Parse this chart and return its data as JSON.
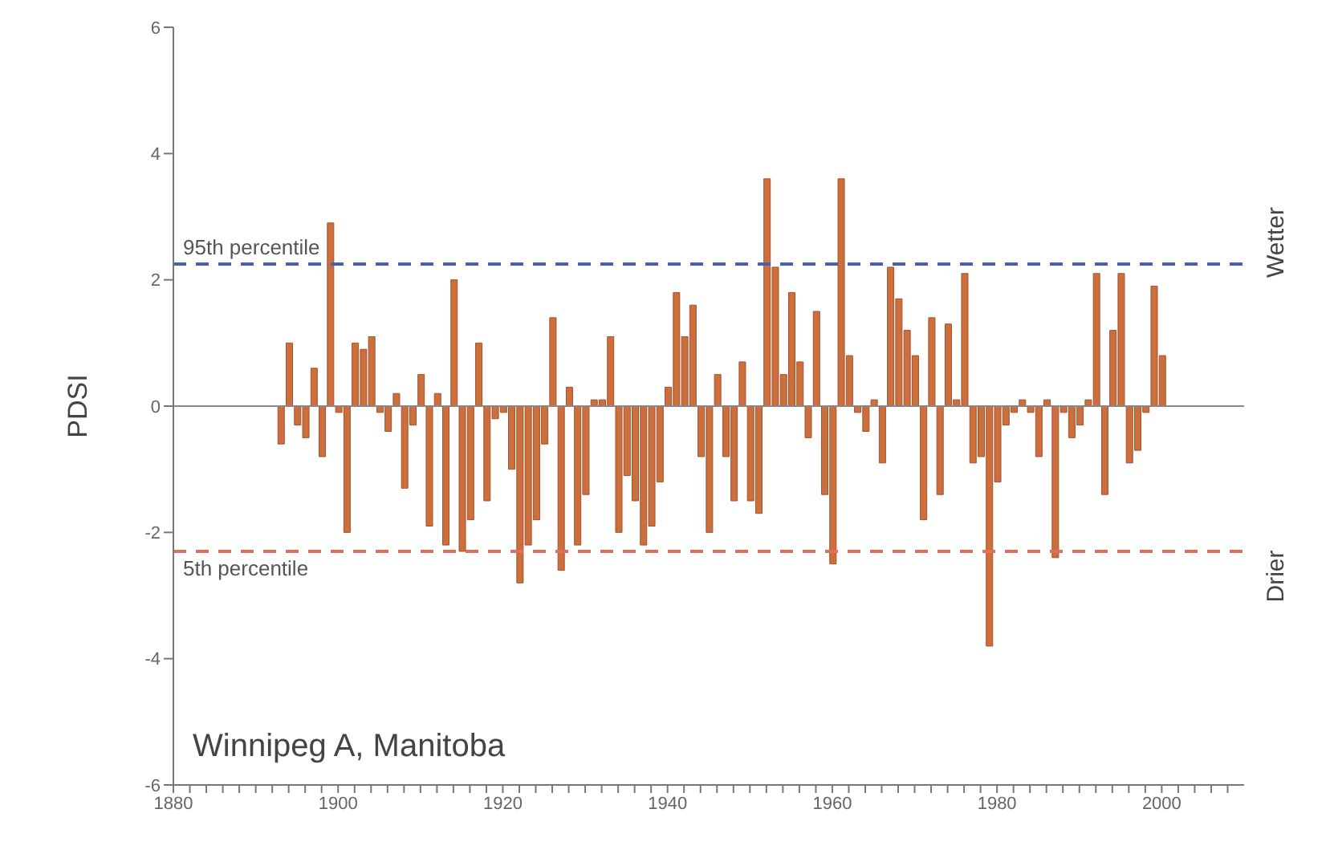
{
  "chart_data": {
    "type": "bar",
    "ylabel": "PDSI",
    "x": [
      1893,
      1894,
      1895,
      1896,
      1897,
      1898,
      1899,
      1900,
      1901,
      1902,
      1903,
      1904,
      1905,
      1906,
      1907,
      1908,
      1909,
      1910,
      1911,
      1912,
      1913,
      1914,
      1915,
      1916,
      1917,
      1918,
      1919,
      1920,
      1921,
      1922,
      1923,
      1924,
      1925,
      1926,
      1927,
      1928,
      1929,
      1930,
      1931,
      1932,
      1933,
      1934,
      1935,
      1936,
      1937,
      1938,
      1939,
      1940,
      1941,
      1942,
      1943,
      1944,
      1945,
      1946,
      1947,
      1948,
      1949,
      1950,
      1951,
      1952,
      1953,
      1954,
      1955,
      1956,
      1957,
      1958,
      1959,
      1960,
      1961,
      1962,
      1963,
      1964,
      1965,
      1966,
      1967,
      1968,
      1969,
      1970,
      1971,
      1972,
      1973,
      1974,
      1975,
      1976,
      1977,
      1978,
      1979,
      1980,
      1981,
      1982,
      1983,
      1984,
      1985,
      1986,
      1987,
      1988,
      1989,
      1990,
      1991,
      1992,
      1993,
      1994,
      1995,
      1996,
      1997,
      1998,
      1999,
      2000
    ],
    "values": [
      -0.6,
      1.0,
      -0.3,
      -0.5,
      0.6,
      -0.8,
      2.9,
      -0.1,
      -2.0,
      1.0,
      0.9,
      1.1,
      -0.1,
      -0.4,
      0.2,
      -1.3,
      -0.3,
      0.5,
      -1.9,
      0.2,
      -2.2,
      2.0,
      -2.3,
      -1.8,
      1.0,
      -1.5,
      -0.2,
      -0.1,
      -1.0,
      -2.8,
      -2.2,
      -1.8,
      -0.6,
      1.4,
      -2.6,
      0.3,
      -2.2,
      -1.4,
      0.1,
      0.1,
      1.1,
      -2.0,
      -1.1,
      -1.5,
      -2.2,
      -1.9,
      -1.2,
      0.3,
      1.8,
      1.1,
      1.6,
      -0.8,
      -2.0,
      0.5,
      -0.8,
      -1.5,
      0.7,
      -1.5,
      -1.7,
      3.6,
      2.2,
      0.5,
      1.8,
      0.7,
      -0.5,
      1.5,
      -1.4,
      -2.5,
      3.6,
      0.8,
      -0.1,
      -0.4,
      0.1,
      -0.9,
      2.2,
      1.7,
      1.2,
      0.8,
      -1.8,
      1.4,
      -1.4,
      1.3,
      0.1,
      2.1,
      -0.9,
      -0.8,
      -3.8,
      -1.2,
      -0.3,
      -0.1,
      0.1,
      -0.1,
      -0.8,
      0.1,
      -2.4,
      -0.1,
      -0.5,
      -0.3,
      0.1,
      2.1,
      -1.4,
      1.2,
      2.1,
      -0.9,
      -0.7,
      -0.1,
      1.9,
      0.8
    ],
    "color": "#cd6f3c",
    "xlim": [
      1880,
      2010
    ],
    "xticks": [
      1880,
      {
        "value": 1882,
        "label": null
      },
      {
        "value": 1884,
        "label": null
      },
      {
        "value": 1886,
        "label": null
      },
      {
        "value": 1888,
        "label": null
      },
      {
        "value": 1890,
        "label": null
      },
      {
        "value": 1892,
        "label": null
      },
      {
        "value": 1894,
        "label": null
      },
      {
        "value": 1896,
        "label": null
      },
      {
        "value": 1898,
        "label": null
      },
      1900,
      {
        "value": 1902,
        "label": null
      },
      {
        "value": 1904,
        "label": null
      },
      {
        "value": 1906,
        "label": null
      },
      {
        "value": 1908,
        "label": null
      },
      {
        "value": 1910,
        "label": null
      },
      {
        "value": 1912,
        "label": null
      },
      {
        "value": 1914,
        "label": null
      },
      {
        "value": 1916,
        "label": null
      },
      {
        "value": 1918,
        "label": null
      },
      1920,
      {
        "value": 1922,
        "label": null
      },
      {
        "value": 1924,
        "label": null
      },
      {
        "value": 1926,
        "label": null
      },
      {
        "value": 1928,
        "label": null
      },
      {
        "value": 1930,
        "label": null
      },
      {
        "value": 1932,
        "label": null
      },
      {
        "value": 1934,
        "label": null
      },
      {
        "value": 1936,
        "label": null
      },
      {
        "value": 1938,
        "label": null
      },
      1940,
      {
        "value": 1942,
        "label": null
      },
      {
        "value": 1944,
        "label": null
      },
      {
        "value": 1946,
        "label": null
      },
      {
        "value": 1948,
        "label": null
      },
      {
        "value": 1950,
        "label": null
      },
      {
        "value": 1952,
        "label": null
      },
      {
        "value": 1954,
        "label": null
      },
      {
        "value": 1956,
        "label": null
      },
      {
        "value": 1958,
        "label": null
      },
      1960,
      {
        "value": 1962,
        "label": null
      },
      {
        "value": 1964,
        "label": null
      },
      {
        "value": 1966,
        "label": null
      },
      {
        "value": 1968,
        "label": null
      },
      {
        "value": 1970,
        "label": null
      },
      {
        "value": 1972,
        "label": null
      },
      {
        "value": 1974,
        "label": null
      },
      {
        "value": 1976,
        "label": null
      },
      {
        "value": 1978,
        "label": null
      },
      1980,
      {
        "value": 1982,
        "label": null
      },
      {
        "value": 1984,
        "label": null
      },
      {
        "value": 1986,
        "label": null
      },
      {
        "value": 1988,
        "label": null
      },
      {
        "value": 1990,
        "label": null
      },
      {
        "value": 1992,
        "label": null
      },
      {
        "value": 1994,
        "label": null
      },
      {
        "value": 1996,
        "label": null
      },
      {
        "value": 1998,
        "label": null
      },
      2000,
      {
        "value": 2002,
        "label": null
      },
      {
        "value": 2004,
        "label": null
      },
      {
        "value": 2006,
        "label": null
      },
      {
        "value": 2008,
        "label": null
      }
    ],
    "ylim": [
      -6,
      6
    ],
    "yticks": [
      -6,
      -4,
      -2,
      0,
      2,
      4,
      6
    ],
    "ref_lines": [
      {
        "axis": "y",
        "value": 2.25,
        "label": "95th percentile",
        "color": "#4a5fb0",
        "line_style": "dashed"
      },
      {
        "axis": "y",
        "value": -2.3,
        "label": "5th percentile",
        "color": "#e0705a",
        "line_style": "dashed"
      },
      {
        "axis": "y",
        "value": 0,
        "label": null,
        "color": "#888888",
        "line_style": "solid"
      }
    ],
    "annotations": [
      "Winnipeg A, Manitoba",
      "Wetter",
      "Drier"
    ]
  }
}
